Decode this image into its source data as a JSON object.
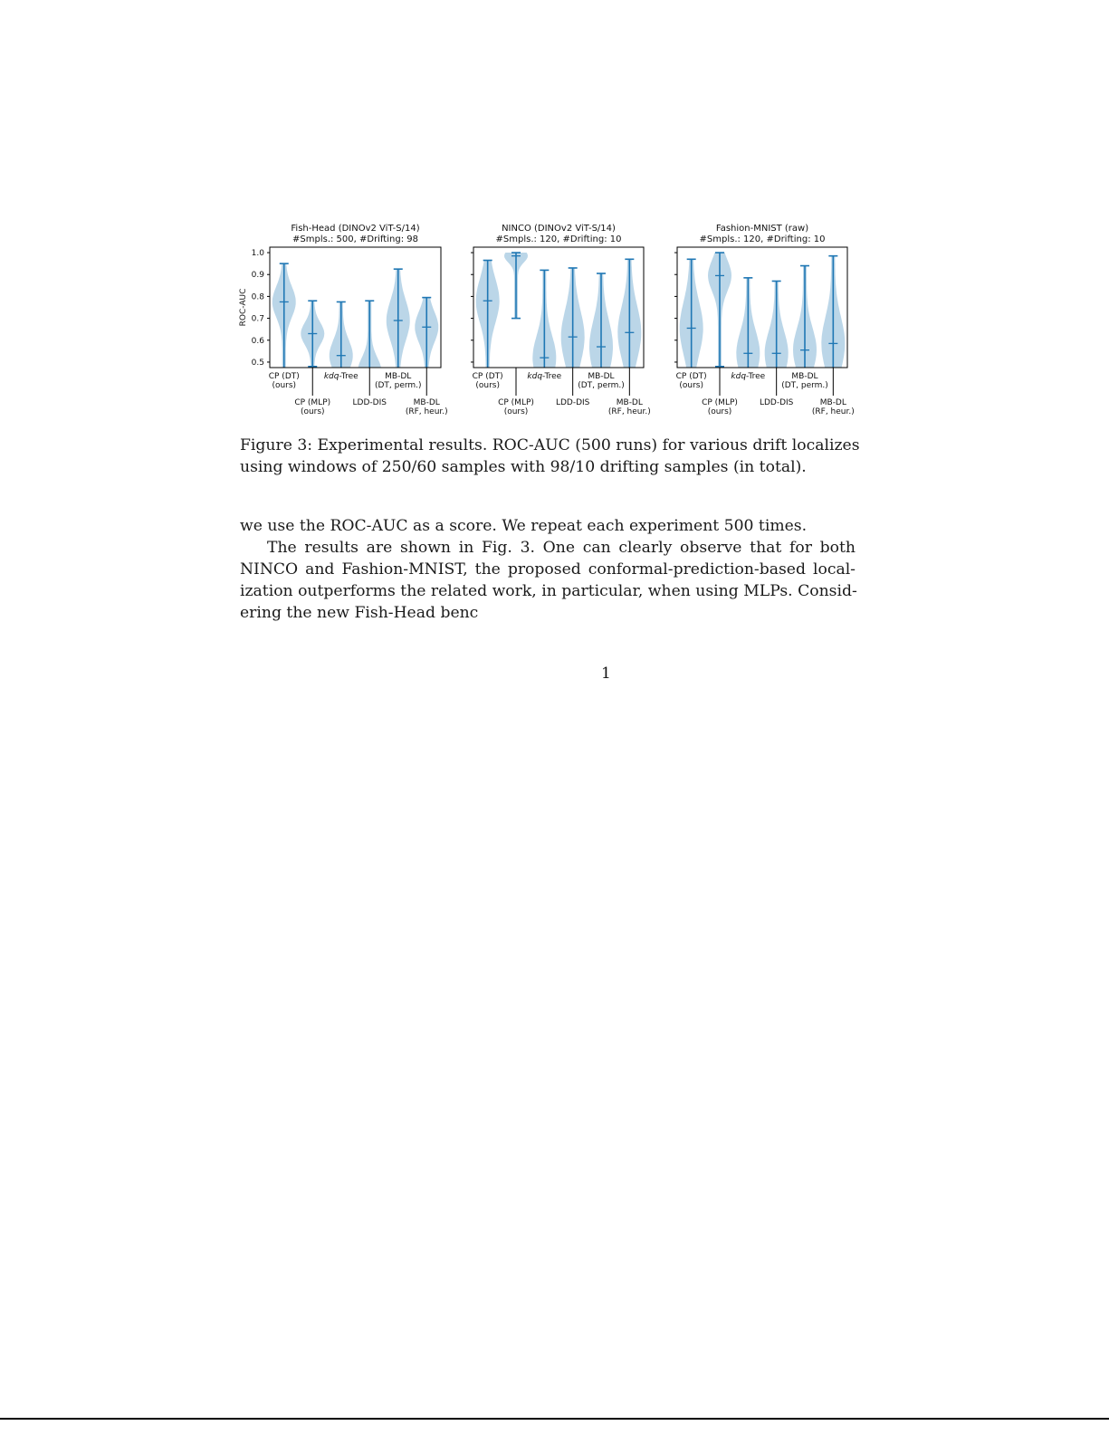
{
  "figure": {
    "caption_lines": [
      "Figure 3: Experimental results. ROC-AUC (500 runs) for various drift localizes",
      "using windows of 250/60 samples with 98/10 drifting samples (in total)."
    ]
  },
  "body": {
    "lines": [
      "we use the ROC-AUC as a score. We repeat each experiment 500 times.",
      "The results are shown in Fig. 3. One can clearly observe that for both",
      "NINCO and Fashion-MNIST, the proposed conformal-prediction-based local-",
      "ization outperforms the related work, in particular, when using MLPs. Consid-",
      "ering the new Fish-Head benc"
    ]
  },
  "page_number": "1",
  "chart_data": [
    {
      "type": "violin",
      "title": "Fish-Head (DINOv2 ViT-S/14)",
      "subtitle": "#Smpls.: 500, #Drifting: 98",
      "ylabel": "ROC-AUC",
      "ylim": [
        0.475,
        1.025
      ],
      "yticks": [
        "0.5",
        "0.6",
        "0.7",
        "0.8",
        "0.9",
        "1.0"
      ],
      "color": "#1f77b4",
      "categories": [
        "CP (DT)\n(ours)",
        "CP (MLP)\n(ours)",
        "kdq-Tree",
        "LDD-DIS",
        "MB-DL\n(DT, perm.)",
        "MB-DL\n(RF, heur.)"
      ],
      "violins": [
        {
          "min": 0.46,
          "max": 0.95,
          "median": 0.775,
          "spread": 0.07
        },
        {
          "min": 0.48,
          "max": 0.78,
          "median": 0.63,
          "spread": 0.05
        },
        {
          "min": 0.46,
          "max": 0.775,
          "median": 0.53,
          "spread": 0.07
        },
        {
          "min": 0.46,
          "max": 0.78,
          "median": 0.46,
          "spread": 0.06
        },
        {
          "min": 0.46,
          "max": 0.925,
          "median": 0.69,
          "spread": 0.09
        },
        {
          "min": 0.46,
          "max": 0.795,
          "median": 0.66,
          "spread": 0.07
        }
      ]
    },
    {
      "type": "violin",
      "title": "NINCO (DINOv2 ViT-S/14)",
      "subtitle": "#Smpls.: 120, #Drifting: 10",
      "ylim": [
        0.475,
        1.025
      ],
      "color": "#1f77b4",
      "categories": [
        "CP (DT)\n(ours)",
        "CP (MLP)\n(ours)",
        "kdq-Tree",
        "LDD-DIS",
        "MB-DL\n(DT, perm.)",
        "MB-DL\n(RF, heur.)"
      ],
      "violins": [
        {
          "min": 0.46,
          "max": 0.965,
          "median": 0.78,
          "spread": 0.1
        },
        {
          "min": 0.7,
          "max": 1.0,
          "median": 0.985,
          "spread": 0.03
        },
        {
          "min": 0.46,
          "max": 0.92,
          "median": 0.52,
          "spread": 0.1
        },
        {
          "min": 0.46,
          "max": 0.93,
          "median": 0.615,
          "spread": 0.12
        },
        {
          "min": 0.46,
          "max": 0.905,
          "median": 0.57,
          "spread": 0.12
        },
        {
          "min": 0.46,
          "max": 0.97,
          "median": 0.635,
          "spread": 0.12
        }
      ]
    },
    {
      "type": "violin",
      "title": "Fashion-MNIST (raw)",
      "subtitle": "#Smpls.: 120, #Drifting: 10",
      "ylim": [
        0.475,
        1.025
      ],
      "color": "#1f77b4",
      "categories": [
        "CP (DT)\n(ours)",
        "CP (MLP)\n(ours)",
        "kdq-Tree",
        "LDD-DIS",
        "MB-DL\n(DT, perm.)",
        "MB-DL\n(RF, heur.)"
      ],
      "violins": [
        {
          "min": 0.46,
          "max": 0.97,
          "median": 0.655,
          "spread": 0.12
        },
        {
          "min": 0.48,
          "max": 1.0,
          "median": 0.895,
          "spread": 0.07
        },
        {
          "min": 0.46,
          "max": 0.885,
          "median": 0.54,
          "spread": 0.1
        },
        {
          "min": 0.46,
          "max": 0.87,
          "median": 0.54,
          "spread": 0.1
        },
        {
          "min": 0.46,
          "max": 0.94,
          "median": 0.555,
          "spread": 0.1
        },
        {
          "min": 0.46,
          "max": 0.985,
          "median": 0.585,
          "spread": 0.12
        }
      ]
    }
  ]
}
